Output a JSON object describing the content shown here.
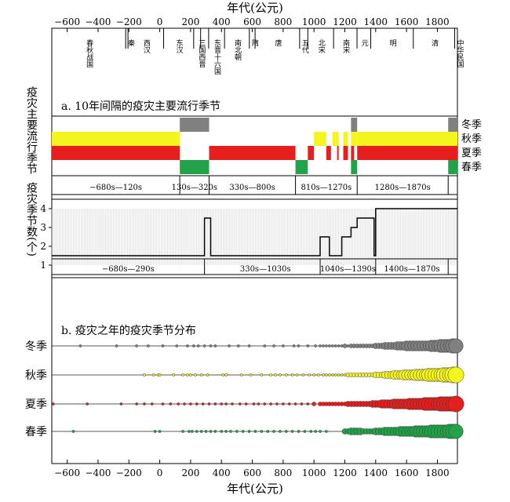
{
  "chart_data": [
    {
      "type": "table",
      "axis_title_top": "年代(公元)",
      "axis_title_bottom": "年代(公元)",
      "xlim": [
        -700,
        1930
      ],
      "xticks": [
        -600,
        -400,
        -200,
        0,
        200,
        400,
        600,
        800,
        1000,
        1200,
        1400,
        1600,
        1800
      ],
      "xtick_labels": [
        "−600",
        "−400",
        "−200",
        "0",
        "200",
        "400",
        "600",
        "800",
        "1000",
        "1200",
        "1400",
        "1600",
        "1800"
      ],
      "dynasty_boundaries": [
        -221,
        -206,
        25,
        220,
        265,
        317,
        420,
        581,
        618,
        907,
        960,
        1127,
        1279,
        1368,
        1644,
        1912
      ],
      "dynasties": [
        {
          "name": "春秋战国",
          "start": -700,
          "end": -221
        },
        {
          "name": "秦",
          "start": -221,
          "end": -206
        },
        {
          "name": "西汉",
          "start": -206,
          "end": 25
        },
        {
          "name": "东汉",
          "start": 25,
          "end": 220
        },
        {
          "name": "三国西晋",
          "start": 220,
          "end": 317
        },
        {
          "name": "东晋十六国",
          "start": 317,
          "end": 420
        },
        {
          "name": "南北朝",
          "start": 420,
          "end": 581
        },
        {
          "name": "隋",
          "start": 581,
          "end": 618
        },
        {
          "name": "唐",
          "start": 618,
          "end": 907
        },
        {
          "name": "五代",
          "start": 907,
          "end": 960
        },
        {
          "name": "北宋",
          "start": 960,
          "end": 1127
        },
        {
          "name": "南宋",
          "start": 1127,
          "end": 1279
        },
        {
          "name": "元",
          "start": 1279,
          "end": 1368
        },
        {
          "name": "明",
          "start": 1368,
          "end": 1644
        },
        {
          "name": "清",
          "start": 1644,
          "end": 1912
        },
        {
          "name": "中华民国",
          "start": 1912,
          "end": 1930
        }
      ]
    },
    {
      "type": "heatmap",
      "title": "a. 10年间隔的疫灾主要流行季节",
      "ylabel": "疫灾主要流行季节",
      "rows": [
        "冬季",
        "秋季",
        "夏季",
        "春季"
      ],
      "colors": {
        "冬季": "#808080",
        "秋季": "#f5f51e",
        "夏季": "#e61e1e",
        "春季": "#22a34a"
      },
      "segments": {
        "冬季": [
          [
            130,
            320
          ],
          [
            1240,
            1280
          ],
          [
            1870,
            1930
          ]
        ],
        "秋季": [
          [
            -700,
            130
          ],
          [
            1000,
            1080
          ],
          [
            1120,
            1160
          ],
          [
            1190,
            1220
          ],
          [
            1240,
            1280
          ],
          [
            1280,
            1930
          ]
        ],
        "夏季": [
          [
            -700,
            130
          ],
          [
            320,
            880
          ],
          [
            960,
            1000
          ],
          [
            1080,
            1110
          ],
          [
            1150,
            1160
          ],
          [
            1190,
            1220
          ],
          [
            1240,
            1260
          ],
          [
            1280,
            1930
          ]
        ],
        "春季": [
          [
            130,
            320
          ],
          [
            880,
            960
          ],
          [
            1240,
            1280
          ],
          [
            1870,
            1930
          ]
        ]
      },
      "periods": [
        {
          "label": "−680s—120s",
          "start": -700,
          "end": 130
        },
        {
          "label": "130s—320s",
          "start": 130,
          "end": 320
        },
        {
          "label": "330s—800s",
          "start": 320,
          "end": 880
        },
        {
          "label": "810s—1270s",
          "start": 880,
          "end": 1280
        },
        {
          "label": "1280s—1870s",
          "start": 1280,
          "end": 1870
        }
      ]
    },
    {
      "type": "line",
      "ylabel": "疫灾季节数(个)",
      "ylim": [
        0.5,
        4.5
      ],
      "yticks": [
        1,
        2,
        3,
        4
      ],
      "x": [
        -700,
        290,
        290,
        330,
        330,
        1040,
        1040,
        1100,
        1100,
        1180,
        1180,
        1240,
        1240,
        1280,
        1280,
        1390,
        1390,
        1400,
        1400,
        1930
      ],
      "y": [
        1.5,
        1.5,
        3.5,
        3.5,
        1.5,
        1.5,
        2.5,
        2.5,
        1.5,
        1.5,
        2.5,
        2.5,
        3.0,
        3.0,
        3.5,
        3.5,
        1.5,
        1.5,
        4.0,
        4.0
      ],
      "periods": [
        {
          "label": "−680s—290s",
          "start": -700,
          "end": 290
        },
        {
          "label": "330s—1030s",
          "start": 330,
          "end": 1040
        },
        {
          "label": "1040s—1390s",
          "start": 1040,
          "end": 1400
        },
        {
          "label": "1400s—1870s",
          "start": 1400,
          "end": 1870
        }
      ]
    },
    {
      "type": "scatter",
      "title": "b. 疫灾之年的疫灾季节分布",
      "xlabel": "年代(公元)",
      "series": [
        {
          "name": "冬季",
          "color": "#808080",
          "x": [
            -515,
            -280,
            -150,
            -75,
            20,
            110,
            180,
            220,
            250,
            290,
            330,
            360,
            450,
            510,
            580,
            680,
            740,
            800,
            870,
            900,
            960,
            1010,
            1040,
            1060,
            1080,
            1100,
            1120,
            1140,
            1160,
            1180,
            1200,
            1220,
            1240,
            1260,
            1280,
            1300,
            1320,
            1340,
            1360,
            1380,
            1400,
            1420,
            1440,
            1460,
            1480,
            1500,
            1520,
            1540,
            1560,
            1580,
            1600,
            1620,
            1640,
            1660,
            1680,
            1700,
            1720,
            1740,
            1760,
            1780,
            1800,
            1820,
            1840,
            1860,
            1880,
            1900,
            1920
          ],
          "sizes": [
            1,
            1,
            1,
            1,
            1,
            1,
            1,
            1,
            1,
            1,
            1,
            1,
            1,
            1,
            1,
            1,
            1,
            1,
            1,
            1,
            1,
            1,
            1,
            1,
            1,
            1,
            1,
            1,
            1,
            1,
            2,
            1,
            2,
            2,
            2,
            2,
            2,
            2,
            2,
            2,
            3,
            3,
            3,
            4,
            4,
            4,
            4,
            5,
            5,
            5,
            6,
            6,
            6,
            6,
            6,
            6,
            6,
            6,
            7,
            7,
            7,
            8,
            8,
            8,
            8,
            9,
            9
          ]
        },
        {
          "name": "秋季",
          "color": "#f5f51e",
          "x": [
            -100,
            -40,
            -10,
            0,
            90,
            150,
            180,
            200,
            230,
            270,
            310,
            410,
            430,
            530,
            590,
            660,
            720,
            750,
            780,
            820,
            860,
            890,
            930,
            970,
            1000,
            1030,
            1060,
            1080,
            1100,
            1120,
            1140,
            1160,
            1180,
            1200,
            1220,
            1240,
            1260,
            1280,
            1300,
            1320,
            1340,
            1360,
            1380,
            1400,
            1420,
            1440,
            1460,
            1480,
            1500,
            1520,
            1540,
            1560,
            1580,
            1600,
            1620,
            1640,
            1660,
            1680,
            1700,
            1720,
            1740,
            1760,
            1780,
            1800,
            1820,
            1840,
            1860,
            1880,
            1900,
            1920
          ],
          "sizes": [
            1,
            1,
            1,
            1,
            1,
            1,
            1,
            1,
            1,
            1,
            1,
            1,
            1,
            1,
            1,
            1,
            1,
            1,
            1,
            1,
            1,
            1,
            1,
            1,
            1,
            1,
            1,
            1,
            1,
            1,
            1,
            1,
            1,
            1,
            2,
            2,
            2,
            2,
            2,
            2,
            2,
            2,
            2,
            3,
            3,
            3,
            4,
            4,
            4,
            5,
            5,
            5,
            6,
            6,
            6,
            6,
            7,
            7,
            7,
            7,
            8,
            8,
            8,
            8,
            8,
            9,
            9,
            9,
            10,
            10
          ]
        },
        {
          "name": "夏季",
          "color": "#e61e1e",
          "x": [
            -690,
            -470,
            -250,
            -150,
            -100,
            -50,
            20,
            70,
            120,
            160,
            200,
            240,
            280,
            320,
            360,
            400,
            430,
            470,
            520,
            560,
            610,
            640,
            680,
            720,
            760,
            800,
            840,
            880,
            920,
            960,
            1000,
            1040,
            1060,
            1080,
            1100,
            1120,
            1140,
            1160,
            1180,
            1200,
            1220,
            1240,
            1260,
            1280,
            1300,
            1320,
            1340,
            1360,
            1380,
            1400,
            1420,
            1440,
            1460,
            1480,
            1500,
            1520,
            1540,
            1560,
            1580,
            1600,
            1620,
            1640,
            1660,
            1680,
            1700,
            1720,
            1740,
            1760,
            1780,
            1800,
            1820,
            1840,
            1860,
            1880,
            1900,
            1920
          ],
          "sizes": [
            1,
            1,
            1,
            1,
            1,
            1,
            1,
            1,
            1,
            1,
            1,
            1,
            1,
            1,
            1,
            1,
            1,
            1,
            1,
            1,
            1,
            1,
            1,
            1,
            1,
            1,
            1,
            1,
            1,
            1,
            2,
            2,
            2,
            2,
            2,
            2,
            2,
            2,
            2,
            2,
            3,
            3,
            3,
            3,
            3,
            3,
            3,
            3,
            4,
            4,
            4,
            5,
            5,
            5,
            5,
            6,
            6,
            6,
            6,
            6,
            7,
            7,
            7,
            7,
            7,
            8,
            8,
            8,
            8,
            8,
            9,
            9,
            9,
            9,
            9,
            10
          ]
        },
        {
          "name": "春季",
          "color": "#22a34a",
          "x": [
            -560,
            -30,
            0,
            150,
            190,
            210,
            240,
            270,
            300,
            330,
            360,
            400,
            430,
            460,
            500,
            540,
            580,
            620,
            660,
            700,
            740,
            780,
            820,
            860,
            900,
            940,
            980,
            1010,
            1040,
            1080,
            1200,
            1220,
            1240,
            1260,
            1280,
            1300,
            1320,
            1340,
            1360,
            1380,
            1400,
            1420,
            1440,
            1460,
            1480,
            1500,
            1520,
            1540,
            1560,
            1580,
            1600,
            1620,
            1640,
            1660,
            1680,
            1700,
            1720,
            1740,
            1760,
            1780,
            1800,
            1820,
            1840,
            1860,
            1880,
            1900,
            1920
          ],
          "sizes": [
            1,
            1,
            1,
            1,
            1,
            1,
            1,
            1,
            1,
            1,
            1,
            1,
            1,
            1,
            1,
            1,
            1,
            1,
            1,
            1,
            1,
            1,
            1,
            1,
            1,
            1,
            1,
            1,
            1,
            1,
            3,
            3,
            4,
            4,
            4,
            4,
            3,
            3,
            3,
            3,
            4,
            4,
            4,
            5,
            5,
            5,
            5,
            5,
            6,
            6,
            6,
            6,
            6,
            7,
            7,
            7,
            7,
            7,
            8,
            8,
            8,
            8,
            8,
            8,
            9,
            9,
            9
          ]
        }
      ]
    }
  ]
}
